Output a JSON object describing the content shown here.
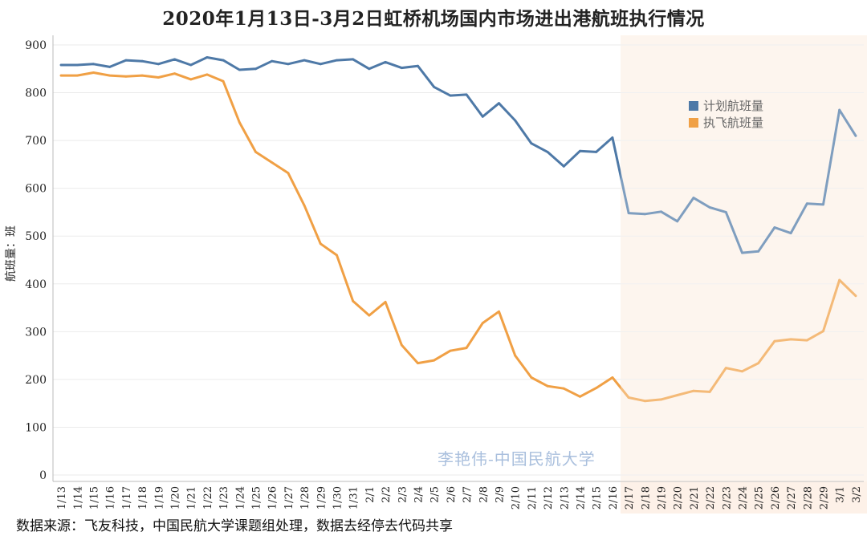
{
  "title": "2020年1月13日-3月2日虹桥机场国内市场进出港航班执行情况",
  "source_note": "数据来源：飞友科技，中国民航大学课题组处理，数据去经停去代码共享",
  "watermark": "李艳伟-中国民航大学",
  "colors": {
    "planned": "#4e79a7",
    "executed": "#f0a045",
    "shade": "#fdf1e8"
  },
  "chart_data": {
    "type": "line",
    "title": "2020年1月13日-3月2日虹桥机场国内市场进出港航班执行情况",
    "ylabel": "航班量：班",
    "xlabel": "",
    "ylim": [
      0,
      900
    ],
    "yticks": [
      0,
      100,
      200,
      300,
      400,
      500,
      600,
      700,
      800,
      900
    ],
    "grid": "horizontal",
    "legend_position": "right",
    "shaded_from": "2/17",
    "categories": [
      "1/13",
      "1/14",
      "1/15",
      "1/16",
      "1/17",
      "1/18",
      "1/19",
      "1/20",
      "1/21",
      "1/22",
      "1/23",
      "1/24",
      "1/25",
      "1/26",
      "1/27",
      "1/28",
      "1/29",
      "1/30",
      "1/31",
      "2/1",
      "2/2",
      "2/3",
      "2/4",
      "2/5",
      "2/6",
      "2/7",
      "2/8",
      "2/9",
      "2/10",
      "2/11",
      "2/12",
      "2/13",
      "2/14",
      "2/15",
      "2/16",
      "2/17",
      "2/18",
      "2/19",
      "2/20",
      "2/21",
      "2/22",
      "2/23",
      "2/24",
      "2/25",
      "2/26",
      "2/27",
      "2/28",
      "2/29",
      "3/1",
      "3/2"
    ],
    "series": [
      {
        "name": "计划航班量",
        "color": "#4e79a7",
        "values": [
          858,
          858,
          860,
          854,
          868,
          866,
          860,
          870,
          858,
          874,
          868,
          848,
          850,
          866,
          860,
          868,
          860,
          868,
          870,
          850,
          864,
          852,
          856,
          812,
          794,
          796,
          750,
          778,
          742,
          694,
          676,
          646,
          678,
          676,
          706,
          548,
          546,
          551,
          531,
          580,
          560,
          550,
          465,
          468,
          518,
          506,
          568,
          566,
          764,
          710
        ]
      },
      {
        "name": "执飞航班量",
        "color": "#f0a045",
        "values": [
          836,
          836,
          842,
          836,
          834,
          836,
          832,
          840,
          828,
          838,
          824,
          738,
          676,
          654,
          632,
          564,
          484,
          460,
          364,
          334,
          362,
          272,
          234,
          240,
          260,
          266,
          318,
          342,
          250,
          204,
          186,
          181,
          164,
          182,
          204,
          162,
          155,
          158,
          167,
          176,
          174,
          224,
          217,
          234,
          280,
          284,
          282,
          301,
          408,
          375
        ]
      }
    ]
  }
}
